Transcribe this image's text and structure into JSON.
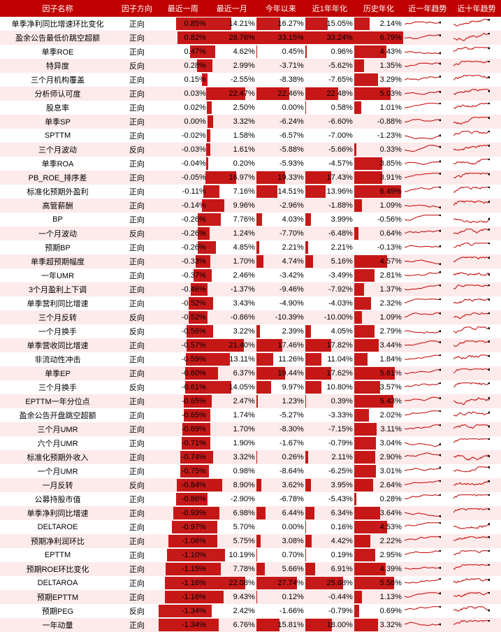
{
  "headers": [
    "因子名称",
    "因子方向",
    "最近一周",
    "最近一月",
    "今年以来",
    "近1年年化",
    "历史年化",
    "近一年趋势",
    "近十年趋势"
  ],
  "numColMax": [
    1.34,
    28.76,
    33.15,
    33.24,
    6.79
  ],
  "barColor": "#c00000",
  "headerBg": "#c00000",
  "headerFg": "#ffffff",
  "altRowBg": "#fdeaea",
  "trendColor": "#c00000",
  "rows": [
    {
      "name": "单季净利同比增速环比变化",
      "dir": "正向",
      "v": [
        0.85,
        14.21,
        16.27,
        15.05,
        2.14
      ]
    },
    {
      "name": "盈余公告最低价跳空超额",
      "dir": "正向",
      "v": [
        0.82,
        28.76,
        33.15,
        33.24,
        6.79
      ]
    },
    {
      "name": "单季ROE",
      "dir": "正向",
      "v": [
        0.47,
        4.62,
        0.45,
        0.96,
        4.43
      ]
    },
    {
      "name": "特异度",
      "dir": "反向",
      "v": [
        0.28,
        2.99,
        -3.71,
        -5.62,
        1.35
      ]
    },
    {
      "name": "三个月机构覆盖",
      "dir": "正向",
      "v": [
        0.15,
        -2.55,
        -8.38,
        -7.65,
        3.29
      ]
    },
    {
      "name": "分析师认可度",
      "dir": "正向",
      "v": [
        0.03,
        22.47,
        22.46,
        22.48,
        5.03
      ]
    },
    {
      "name": "股息率",
      "dir": "正向",
      "v": [
        0.02,
        2.5,
        0.0,
        0.58,
        1.01
      ]
    },
    {
      "name": "单季SP",
      "dir": "正向",
      "v": [
        0.0,
        3.32,
        -6.24,
        -6.6,
        -0.88
      ]
    },
    {
      "name": "SPTTM",
      "dir": "正向",
      "v": [
        -0.02,
        1.58,
        -6.57,
        -7.0,
        -1.23
      ]
    },
    {
      "name": "三个月波动",
      "dir": "反向",
      "v": [
        -0.03,
        1.61,
        -5.88,
        -5.66,
        0.33
      ]
    },
    {
      "name": "单季ROA",
      "dir": "正向",
      "v": [
        -0.04,
        0.2,
        -5.93,
        -4.57,
        3.85
      ]
    },
    {
      "name": "PB_ROE_排序差",
      "dir": "正向",
      "v": [
        -0.05,
        16.97,
        19.33,
        17.43,
        3.91
      ]
    },
    {
      "name": "标准化预期外盈利",
      "dir": "正向",
      "v": [
        -0.11,
        7.16,
        14.51,
        13.96,
        6.49
      ]
    },
    {
      "name": "高管薪酬",
      "dir": "正向",
      "v": [
        -0.14,
        9.96,
        -2.96,
        -1.88,
        1.09
      ]
    },
    {
      "name": "BP",
      "dir": "正向",
      "v": [
        -0.26,
        7.76,
        4.03,
        3.99,
        -0.56
      ]
    },
    {
      "name": "一个月波动",
      "dir": "反向",
      "v": [
        -0.26,
        1.24,
        -7.7,
        -6.48,
        0.64
      ]
    },
    {
      "name": "预期BP",
      "dir": "正向",
      "v": [
        -0.26,
        4.85,
        2.21,
        2.21,
        -0.13
      ]
    },
    {
      "name": "单季超预期幅度",
      "dir": "正向",
      "v": [
        -0.33,
        1.7,
        4.74,
        5.16,
        4.57
      ]
    },
    {
      "name": "一年UMR",
      "dir": "正向",
      "v": [
        -0.37,
        2.46,
        -3.42,
        -3.49,
        2.81
      ]
    },
    {
      "name": "3个月盈利上下调",
      "dir": "正向",
      "v": [
        -0.46,
        -1.37,
        -9.46,
        -7.92,
        1.37
      ]
    },
    {
      "name": "单季营利同比增速",
      "dir": "正向",
      "v": [
        -0.52,
        3.43,
        -4.9,
        -4.03,
        2.32
      ]
    },
    {
      "name": "三个月反转",
      "dir": "反向",
      "v": [
        -0.52,
        -0.86,
        -10.39,
        -10.0,
        1.09
      ]
    },
    {
      "name": "一个月换手",
      "dir": "反向",
      "v": [
        -0.56,
        3.22,
        2.39,
        4.05,
        2.79
      ]
    },
    {
      "name": "单季营收同比增速",
      "dir": "正向",
      "v": [
        -0.57,
        21.4,
        17.46,
        17.82,
        3.44
      ]
    },
    {
      "name": "非流动性冲击",
      "dir": "正向",
      "v": [
        -0.59,
        13.11,
        11.26,
        11.04,
        1.84
      ]
    },
    {
      "name": "单季EP",
      "dir": "正向",
      "v": [
        -0.6,
        6.37,
        19.44,
        17.62,
        5.61
      ]
    },
    {
      "name": "三个月换手",
      "dir": "反向",
      "v": [
        -0.61,
        14.05,
        9.97,
        10.8,
        3.57
      ]
    },
    {
      "name": "EPTTM一年分位点",
      "dir": "正向",
      "v": [
        -0.65,
        2.47,
        1.23,
        0.39,
        5.43
      ]
    },
    {
      "name": "盈余公告开盘跳空超额",
      "dir": "正向",
      "v": [
        -0.65,
        1.74,
        -5.27,
        -3.33,
        2.02
      ]
    },
    {
      "name": "三个月UMR",
      "dir": "正向",
      "v": [
        -0.69,
        1.7,
        -8.3,
        -7.15,
        3.11
      ]
    },
    {
      "name": "六个月UMR",
      "dir": "正向",
      "v": [
        -0.71,
        1.9,
        -1.67,
        -0.79,
        3.04
      ]
    },
    {
      "name": "标准化预期外收入",
      "dir": "正向",
      "v": [
        -0.74,
        3.32,
        0.26,
        2.11,
        2.9
      ]
    },
    {
      "name": "一个月UMR",
      "dir": "正向",
      "v": [
        -0.75,
        0.98,
        -8.64,
        -6.25,
        3.01
      ]
    },
    {
      "name": "一月反转",
      "dir": "反向",
      "v": [
        -0.84,
        8.9,
        3.62,
        3.95,
        2.64
      ]
    },
    {
      "name": "公募持股市值",
      "dir": "正向",
      "v": [
        -0.86,
        -2.9,
        -6.78,
        -5.43,
        0.28
      ]
    },
    {
      "name": "单季净利同比增速",
      "dir": "正向",
      "v": [
        -0.93,
        6.98,
        6.44,
        6.34,
        3.64
      ]
    },
    {
      "name": "DELTAROE",
      "dir": "正向",
      "v": [
        -0.97,
        5.7,
        0.0,
        0.16,
        4.53
      ]
    },
    {
      "name": "预期净利润环比",
      "dir": "正向",
      "v": [
        -1.06,
        5.75,
        3.08,
        4.42,
        2.22
      ]
    },
    {
      "name": "EPTTM",
      "dir": "正向",
      "v": [
        -1.1,
        10.19,
        0.7,
        0.19,
        2.95
      ]
    },
    {
      "name": "预期ROE环比变化",
      "dir": "正向",
      "v": [
        -1.15,
        7.78,
        5.66,
        6.91,
        4.39
      ]
    },
    {
      "name": "DELTAROA",
      "dir": "正向",
      "v": [
        -1.16,
        22.08,
        27.74,
        25.68,
        5.58
      ]
    },
    {
      "name": "预期EPTTM",
      "dir": "正向",
      "v": [
        -1.16,
        9.43,
        0.12,
        -0.44,
        1.13
      ]
    },
    {
      "name": "预期PEG",
      "dir": "反向",
      "v": [
        -1.34,
        2.42,
        -1.66,
        -0.79,
        0.69
      ]
    },
    {
      "name": "一年动量",
      "dir": "正向",
      "v": [
        -1.34,
        6.76,
        15.81,
        18.0,
        3.32
      ]
    }
  ]
}
